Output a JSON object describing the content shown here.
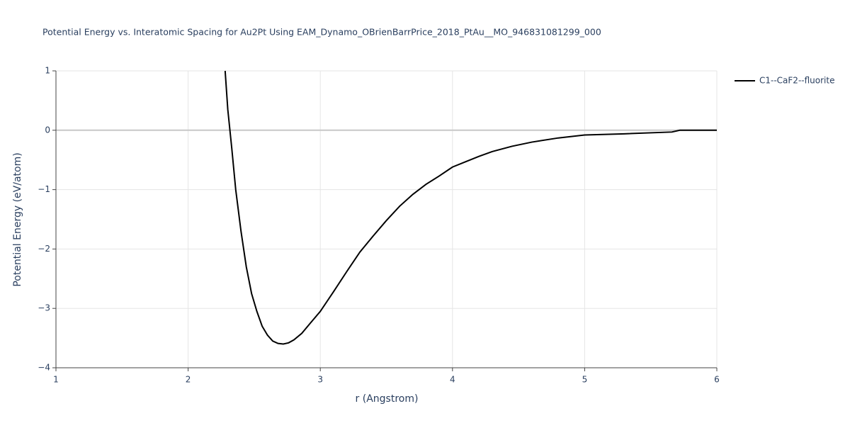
{
  "chart_data": {
    "type": "line",
    "title": "Potential Energy vs. Interatomic Spacing for Au2Pt Using EAM_Dynamo_OBrienBarrPrice_2018_PtAu__MO_946831081299_000",
    "x_label": "r (Angstrom)",
    "y_label": "Potential Energy (eV/atom)",
    "x": [
      2.28,
      2.3,
      2.33,
      2.36,
      2.4,
      2.44,
      2.48,
      2.52,
      2.56,
      2.6,
      2.64,
      2.68,
      2.72,
      2.76,
      2.8,
      2.86,
      2.92,
      3.0,
      3.1,
      3.2,
      3.3,
      3.4,
      3.5,
      3.6,
      3.7,
      3.8,
      3.9,
      4.0,
      4.1,
      4.2,
      4.3,
      4.45,
      4.6,
      4.8,
      5.0,
      5.3,
      5.66,
      5.72,
      6.0
    ],
    "series": [
      {
        "name": "C1--CaF2--fluorite",
        "color": "#000000",
        "values": [
          1.0,
          0.35,
          -0.3,
          -1.0,
          -1.7,
          -2.3,
          -2.75,
          -3.05,
          -3.3,
          -3.45,
          -3.55,
          -3.59,
          -3.6,
          -3.58,
          -3.53,
          -3.42,
          -3.26,
          -3.05,
          -2.72,
          -2.38,
          -2.05,
          -1.78,
          -1.52,
          -1.28,
          -1.08,
          -0.91,
          -0.77,
          -0.62,
          -0.53,
          -0.44,
          -0.36,
          -0.27,
          -0.2,
          -0.13,
          -0.08,
          -0.06,
          -0.03,
          0,
          0
        ]
      }
    ],
    "xlim": [
      1,
      6
    ],
    "xticks": [
      1,
      2,
      3,
      4,
      5,
      6
    ],
    "ylim": [
      -4,
      1
    ],
    "yticks": [
      {
        "value": -4,
        "label": "−4"
      },
      {
        "value": -3,
        "label": "−3"
      },
      {
        "value": -2,
        "label": "−2"
      },
      {
        "value": -1,
        "label": "−1"
      },
      0,
      1
    ],
    "grid": true,
    "legend": "right"
  }
}
